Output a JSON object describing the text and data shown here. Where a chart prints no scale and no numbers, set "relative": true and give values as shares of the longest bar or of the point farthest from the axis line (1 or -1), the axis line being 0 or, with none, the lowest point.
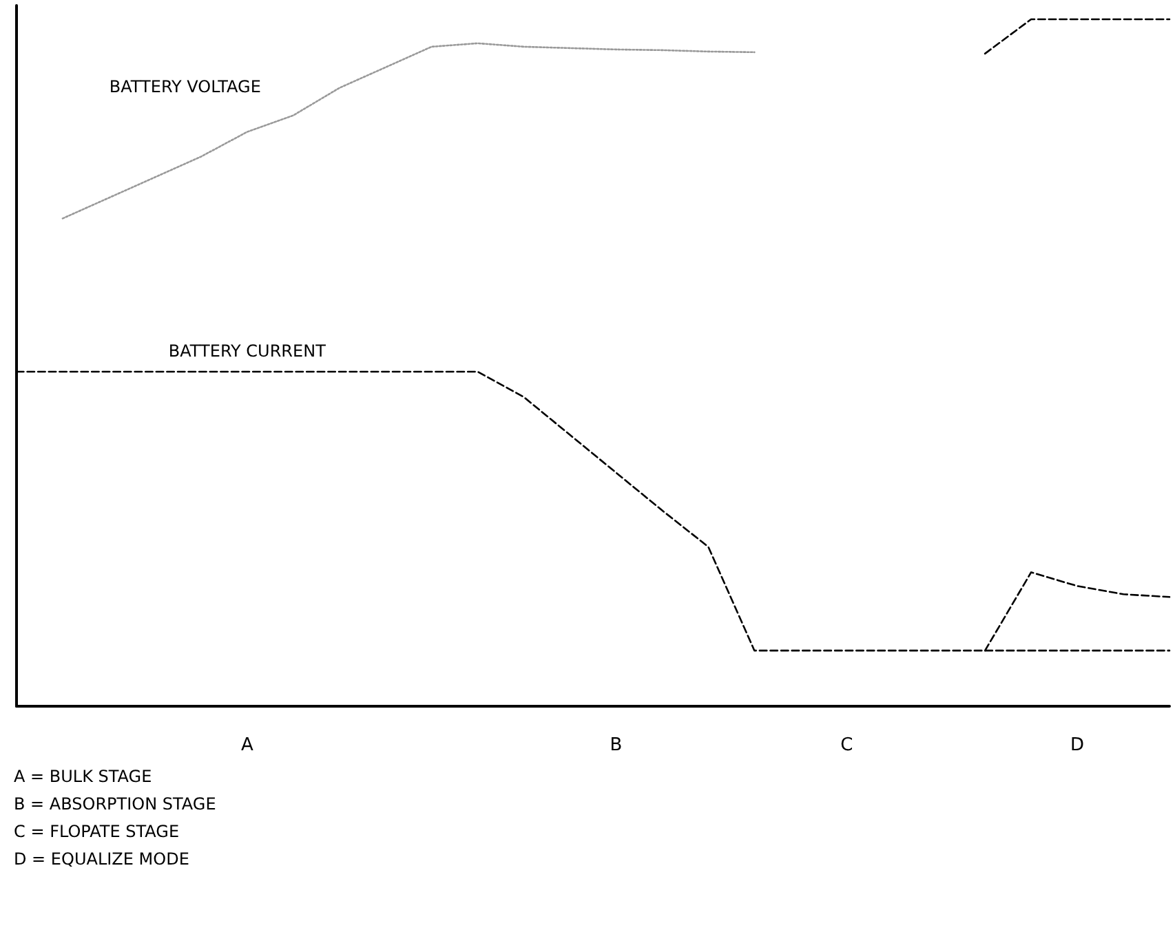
{
  "chart_data": {
    "type": "line",
    "relative": true,
    "grid": false,
    "marker": "none",
    "categories": [
      null,
      null,
      null,
      null,
      null,
      "A",
      null,
      null,
      null,
      null,
      null,
      null,
      null,
      "B",
      null,
      null,
      null,
      null,
      "C",
      null,
      null,
      null,
      null,
      "D",
      null,
      null
    ],
    "series": [
      {
        "name": "BATTERY VOLTAGE",
        "color": "#999999",
        "line_style": "dotted",
        "values": [
          null,
          0.71,
          0.74,
          0.77,
          0.8,
          0.836,
          0.86,
          0.9,
          0.93,
          0.96,
          0.965,
          0.96,
          0.958,
          0.956,
          0.955,
          0.953,
          0.952,
          null,
          null,
          null,
          null,
          null,
          null,
          null,
          null,
          null
        ]
      },
      {
        "color": "#000000",
        "line_style": "dashed",
        "values": [
          null,
          null,
          null,
          null,
          null,
          null,
          null,
          null,
          null,
          null,
          null,
          null,
          null,
          null,
          null,
          null,
          null,
          null,
          null,
          null,
          null,
          0.95,
          1,
          1,
          1,
          1
        ]
      },
      {
        "name": "BATTERY CURRENT",
        "color": "#000000",
        "line_style": "dashed",
        "values": [
          0.487,
          0.487,
          0.487,
          0.487,
          0.487,
          0.487,
          0.487,
          0.487,
          0.487,
          0.487,
          0.487,
          0.45,
          0.395,
          0.34,
          0.285,
          0.232,
          0.081,
          0.081,
          0.081,
          0.081,
          0.081,
          0.081,
          0.081,
          0.081,
          0.081,
          0.081
        ]
      },
      {
        "color": "#000000",
        "line_style": "dashed",
        "values": [
          null,
          null,
          null,
          null,
          null,
          null,
          null,
          null,
          null,
          null,
          null,
          null,
          null,
          null,
          null,
          null,
          null,
          null,
          null,
          null,
          null,
          0.081,
          0.195,
          0.175,
          0.163,
          0.159
        ]
      }
    ],
    "annotations": [
      "A = BULK STAGE",
      "B = ABSORPTION STAGE",
      "C = FLOPATE STAGE",
      "D = EQUALIZE MODE"
    ]
  }
}
